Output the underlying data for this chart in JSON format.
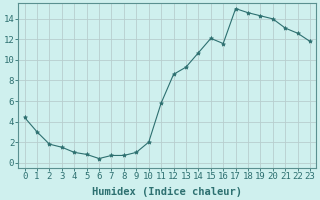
{
  "x": [
    0,
    1,
    2,
    3,
    4,
    5,
    6,
    7,
    8,
    9,
    10,
    11,
    12,
    13,
    14,
    15,
    16,
    17,
    18,
    19,
    20,
    21,
    22,
    23
  ],
  "y": [
    4.4,
    3.0,
    1.8,
    1.5,
    1.0,
    0.8,
    0.4,
    0.7,
    0.7,
    1.0,
    2.0,
    5.8,
    8.6,
    9.3,
    10.7,
    12.1,
    11.6,
    15.0,
    14.6,
    14.3,
    14.0,
    13.1,
    12.6,
    11.8
  ],
  "xlabel": "Humidex (Indice chaleur)",
  "ylim": [
    -0.5,
    15.5
  ],
  "xlim": [
    -0.5,
    23.5
  ],
  "yticks": [
    0,
    2,
    4,
    6,
    8,
    10,
    12,
    14
  ],
  "xticks": [
    0,
    1,
    2,
    3,
    4,
    5,
    6,
    7,
    8,
    9,
    10,
    11,
    12,
    13,
    14,
    15,
    16,
    17,
    18,
    19,
    20,
    21,
    22,
    23
  ],
  "line_color": "#2d7070",
  "marker": "*",
  "marker_size": 3,
  "bg_color": "#cff0ee",
  "grid_color": "#b8cece",
  "tick_color": "#2d7070",
  "tick_label_fontsize": 6.5,
  "xlabel_fontsize": 7.5,
  "spine_color": "#5a9090"
}
